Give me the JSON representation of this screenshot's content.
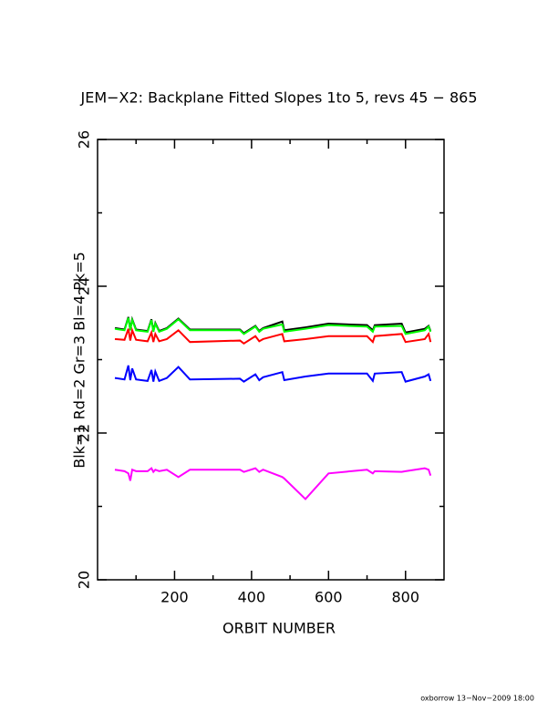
{
  "chart_data": {
    "type": "line",
    "title": "JEM−X2: Backplane Fitted Slopes 1to 5, revs 45 − 865",
    "x_label": "ORBIT NUMBER",
    "y_label": "Blk=1 Rd=2 Gr=3 Bl=4 Pk=5",
    "footer": "oxborrow 13−Nov−2009 18:00",
    "x": [
      45,
      70,
      80,
      85,
      90,
      100,
      130,
      140,
      145,
      150,
      160,
      180,
      210,
      240,
      370,
      380,
      410,
      420,
      430,
      480,
      485,
      540,
      600,
      700,
      715,
      720,
      790,
      800,
      850,
      860,
      865
    ],
    "series": [
      {
        "name": "Blk=1",
        "color": "#000000",
        "values": [
          23.43,
          23.41,
          23.58,
          23.41,
          23.55,
          23.41,
          23.39,
          23.55,
          23.39,
          23.5,
          23.39,
          23.43,
          23.56,
          23.41,
          23.41,
          23.36,
          23.46,
          23.39,
          23.43,
          23.52,
          23.4,
          23.44,
          23.49,
          23.47,
          23.4,
          23.47,
          23.49,
          23.37,
          23.42,
          23.46,
          23.39
        ]
      },
      {
        "name": "Rd=2",
        "color": "#ff0000",
        "values": [
          23.28,
          23.27,
          23.42,
          23.26,
          23.4,
          23.27,
          23.25,
          23.37,
          23.24,
          23.35,
          23.25,
          23.28,
          23.4,
          23.24,
          23.26,
          23.22,
          23.32,
          23.25,
          23.28,
          23.35,
          23.25,
          23.28,
          23.32,
          23.32,
          23.24,
          23.32,
          23.35,
          23.24,
          23.28,
          23.35,
          23.24
        ]
      },
      {
        "name": "Gr=3",
        "color": "#00ff00",
        "values": [
          23.42,
          23.4,
          23.57,
          23.4,
          23.54,
          23.4,
          23.38,
          23.54,
          23.38,
          23.49,
          23.38,
          23.42,
          23.55,
          23.4,
          23.4,
          23.35,
          23.45,
          23.38,
          23.42,
          23.48,
          23.38,
          23.42,
          23.47,
          23.45,
          23.38,
          23.45,
          23.46,
          23.35,
          23.4,
          23.45,
          23.38
        ]
      },
      {
        "name": "Bl=4",
        "color": "#0000ff",
        "values": [
          22.75,
          22.73,
          22.92,
          22.72,
          22.88,
          22.73,
          22.71,
          22.86,
          22.7,
          22.84,
          22.71,
          22.75,
          22.9,
          22.73,
          22.74,
          22.7,
          22.8,
          22.72,
          22.76,
          22.83,
          22.72,
          22.77,
          22.81,
          22.81,
          22.71,
          22.81,
          22.83,
          22.7,
          22.77,
          22.8,
          22.71
        ]
      },
      {
        "name": "Pk=5",
        "color": "#ff00ff",
        "values": [
          21.5,
          21.48,
          21.45,
          21.35,
          21.5,
          21.48,
          21.48,
          21.52,
          21.47,
          21.5,
          21.48,
          21.5,
          21.4,
          21.5,
          21.5,
          21.47,
          21.52,
          21.47,
          21.5,
          21.4,
          21.38,
          21.1,
          21.45,
          21.5,
          21.45,
          21.48,
          21.47,
          21.48,
          21.52,
          21.5,
          21.42
        ]
      }
    ],
    "xlim": [
      0,
      900
    ],
    "xticks": [
      200,
      400,
      600,
      800
    ],
    "xminor": [
      100,
      300,
      500,
      700
    ],
    "ylim": [
      20,
      26
    ],
    "yticks": [
      20,
      22,
      24,
      26
    ],
    "yminor": [
      21,
      23,
      25
    ]
  }
}
